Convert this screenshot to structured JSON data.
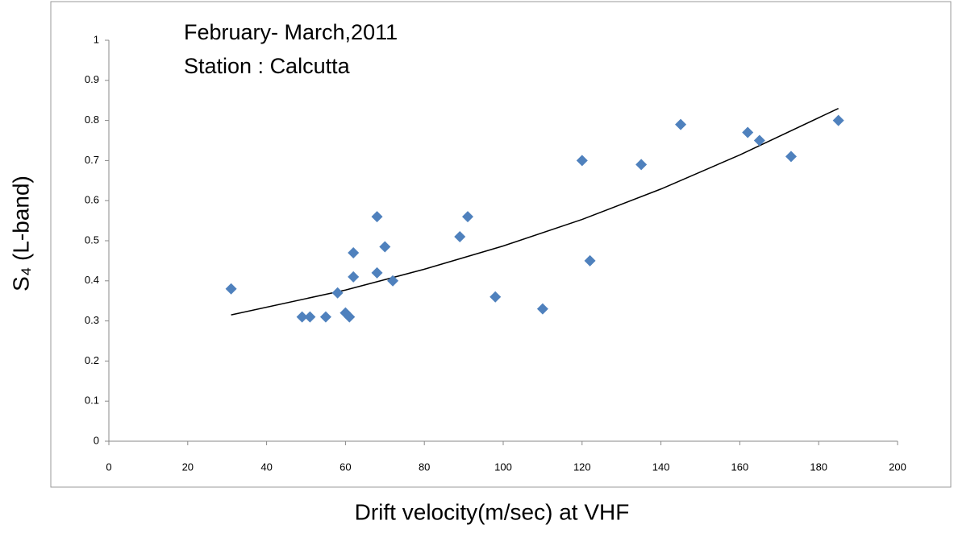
{
  "chart_data": {
    "type": "scatter",
    "title_lines": [
      "February- March,2011",
      "Station : Calcutta"
    ],
    "xlabel": "Drift velocity(m/sec) at VHF",
    "ylabel": "S₄ (L-band)",
    "x": [
      31,
      49,
      51,
      55,
      58,
      60,
      61,
      62,
      62,
      68,
      68,
      70,
      72,
      89,
      91,
      98,
      110,
      120,
      122,
      135,
      145,
      162,
      165,
      173,
      185
    ],
    "values": [
      0.38,
      0.31,
      0.31,
      0.31,
      0.37,
      0.32,
      0.31,
      0.47,
      0.41,
      0.56,
      0.42,
      0.485,
      0.4,
      0.51,
      0.56,
      0.36,
      0.33,
      0.7,
      0.45,
      0.69,
      0.79,
      0.77,
      0.75,
      0.71,
      0.8
    ],
    "color": "#4f81bd",
    "trendline": {
      "x": [
        31,
        60,
        80,
        100,
        120,
        140,
        160,
        185
      ],
      "values": [
        0.315,
        0.377,
        0.429,
        0.487,
        0.553,
        0.629,
        0.714,
        0.83
      ],
      "color": "#000000"
    },
    "xlim": [
      0,
      200
    ],
    "xticks": [
      0,
      20,
      40,
      60,
      80,
      100,
      120,
      140,
      160,
      180,
      200
    ],
    "ylim": [
      0,
      1
    ],
    "yticks": [
      0,
      0.1,
      0.2,
      0.3,
      0.4,
      0.5,
      0.6,
      0.7,
      0.8,
      0.9,
      1
    ],
    "grid": false
  }
}
